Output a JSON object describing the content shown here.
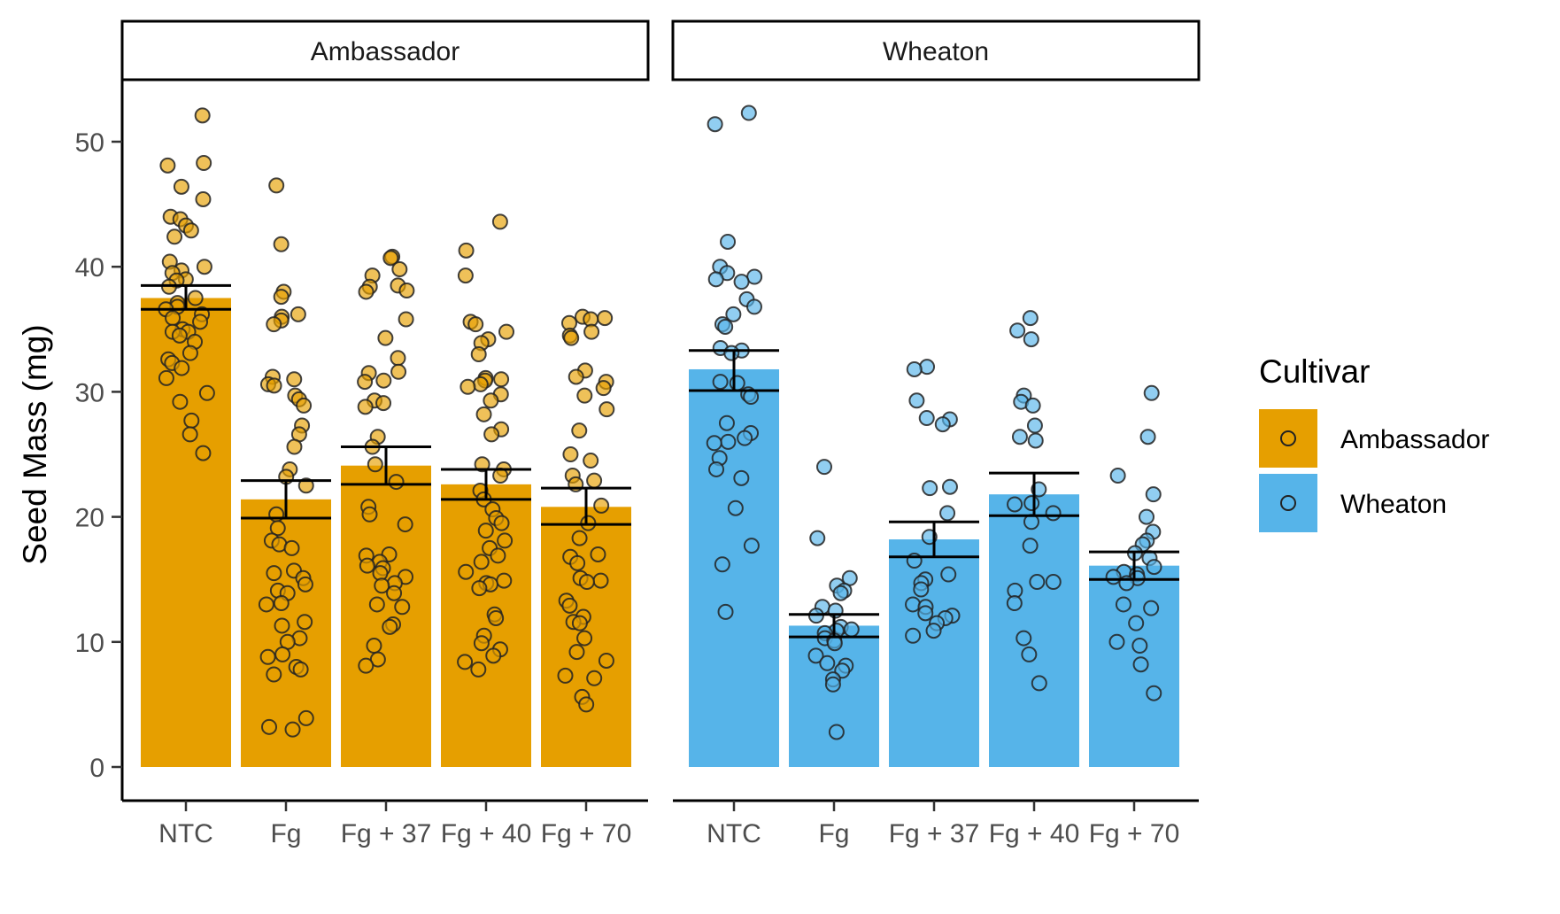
{
  "chart_data": {
    "type": "bar",
    "facets": [
      "Ambassador",
      "Wheaton"
    ],
    "categories": [
      "NTC",
      "Fg",
      "Fg + 37",
      "Fg + 40",
      "Fg + 70"
    ],
    "ylabel": "Seed Mass (mg)",
    "xlabel": "",
    "ylim": [
      0,
      55
    ],
    "yticks": [
      0,
      10,
      20,
      30,
      40,
      50
    ],
    "grid": false,
    "legend": {
      "title": "Cultivar",
      "position": "right",
      "entries": [
        {
          "label": "Ambassador",
          "color": "#E69F00"
        },
        {
          "label": "Wheaton",
          "color": "#56B4E9"
        }
      ]
    },
    "series": [
      {
        "name": "Ambassador",
        "color": "#E69F00",
        "values": [
          37.5,
          21.4,
          24.1,
          22.6,
          20.8
        ],
        "error_low": [
          36.6,
          19.9,
          22.6,
          21.4,
          19.4
        ],
        "error_high": [
          38.5,
          22.9,
          25.6,
          23.8,
          22.3
        ],
        "points": [
          [
            52.1,
            48.3,
            48.1,
            46.4,
            45.4,
            44.0,
            43.8,
            43.3,
            42.9,
            42.4,
            40.4,
            40.0,
            39.7,
            39.5,
            39.0,
            38.9,
            38.4,
            37.5,
            37.1,
            36.8,
            36.6,
            36.2,
            35.9,
            35.6,
            35.0,
            34.8,
            34.8,
            34.5,
            34.0,
            33.1,
            32.6,
            32.3,
            31.9,
            31.1,
            29.9,
            29.2,
            27.7,
            26.6,
            25.1
          ],
          [
            46.5,
            41.8,
            38.0,
            37.6,
            36.2,
            36.0,
            35.7,
            35.4,
            31.2,
            31.0,
            30.6,
            30.5,
            29.7,
            29.4,
            28.9,
            27.3,
            26.6,
            25.6,
            23.8,
            23.2,
            22.5,
            20.2,
            19.1,
            18.1,
            17.8,
            17.5,
            15.7,
            15.5,
            15.1,
            14.6,
            14.1,
            13.9,
            13.1,
            13.0,
            11.6,
            11.3,
            10.3,
            10.0,
            9.0,
            8.8,
            8.0,
            7.8,
            7.4,
            3.9,
            3.2,
            3.0
          ],
          [
            40.8,
            40.7,
            39.8,
            39.3,
            38.5,
            38.4,
            38.1,
            38.0,
            35.8,
            34.3,
            32.7,
            31.6,
            31.5,
            30.9,
            30.8,
            29.3,
            29.1,
            28.8,
            26.4,
            25.6,
            24.2,
            22.8,
            20.8,
            20.2,
            19.4,
            17.0,
            16.9,
            16.4,
            16.1,
            15.9,
            15.5,
            15.2,
            14.7,
            14.5,
            13.9,
            13.0,
            12.8,
            11.4,
            11.2,
            9.7,
            8.6,
            8.1
          ],
          [
            43.6,
            41.3,
            39.3,
            35.6,
            35.4,
            34.8,
            34.2,
            33.9,
            33.0,
            31.1,
            31.0,
            30.9,
            30.6,
            30.4,
            29.8,
            29.3,
            28.2,
            27.0,
            26.6,
            24.2,
            23.8,
            23.3,
            22.1,
            21.4,
            20.6,
            19.9,
            19.5,
            18.9,
            18.1,
            17.5,
            16.9,
            16.4,
            15.6,
            14.9,
            14.7,
            14.6,
            14.3,
            12.2,
            11.9,
            10.5,
            9.9,
            9.4,
            8.9,
            8.4,
            7.8
          ],
          [
            36.0,
            35.9,
            35.8,
            35.5,
            34.8,
            34.5,
            34.3,
            31.7,
            31.2,
            30.8,
            30.3,
            29.7,
            28.6,
            26.9,
            25.0,
            24.5,
            23.3,
            22.9,
            22.6,
            20.9,
            19.5,
            18.3,
            17.0,
            16.8,
            16.3,
            15.1,
            14.9,
            14.8,
            13.3,
            12.9,
            12.0,
            11.6,
            11.5,
            10.3,
            9.2,
            8.5,
            7.3,
            7.1,
            5.6,
            5.0
          ]
        ]
      },
      {
        "name": "Wheaton",
        "color": "#56B4E9",
        "values": [
          31.8,
          11.3,
          18.2,
          21.8,
          16.1
        ],
        "error_low": [
          30.1,
          10.4,
          16.8,
          20.1,
          15.0
        ],
        "error_high": [
          33.3,
          12.2,
          19.6,
          23.5,
          17.2
        ],
        "points": [
          [
            52.3,
            51.4,
            42.0,
            40.0,
            39.5,
            39.2,
            39.0,
            38.8,
            37.4,
            36.8,
            36.2,
            35.4,
            35.2,
            33.5,
            33.3,
            33.1,
            30.8,
            30.7,
            29.8,
            29.6,
            27.5,
            26.7,
            26.3,
            26.0,
            25.9,
            24.7,
            23.8,
            23.1,
            20.7,
            17.7,
            16.2,
            12.4
          ],
          [
            24.0,
            18.3,
            15.1,
            14.5,
            14.1,
            13.9,
            12.8,
            12.5,
            12.1,
            11.2,
            11.0,
            10.9,
            10.7,
            10.3,
            10.1,
            9.9,
            8.9,
            8.3,
            8.1,
            7.7,
            7.0,
            6.6,
            2.8
          ],
          [
            32.0,
            31.8,
            29.3,
            27.9,
            27.8,
            27.4,
            22.4,
            22.3,
            20.3,
            18.4,
            16.5,
            15.4,
            15.0,
            14.7,
            14.2,
            13.0,
            12.8,
            12.3,
            12.1,
            11.9,
            11.5,
            10.9,
            10.5
          ],
          [
            35.9,
            34.9,
            34.2,
            29.7,
            29.2,
            28.9,
            27.3,
            26.4,
            26.1,
            22.2,
            21.1,
            21.0,
            20.3,
            19.6,
            17.7,
            14.8,
            14.8,
            14.1,
            13.1,
            10.3,
            9.0,
            6.7
          ],
          [
            29.9,
            26.4,
            23.3,
            21.8,
            20.0,
            18.8,
            18.1,
            17.8,
            17.1,
            16.7,
            16.0,
            15.6,
            15.4,
            15.2,
            15.1,
            14.7,
            13.0,
            12.7,
            11.5,
            10.0,
            9.7,
            8.2,
            5.9
          ]
        ]
      }
    ]
  }
}
